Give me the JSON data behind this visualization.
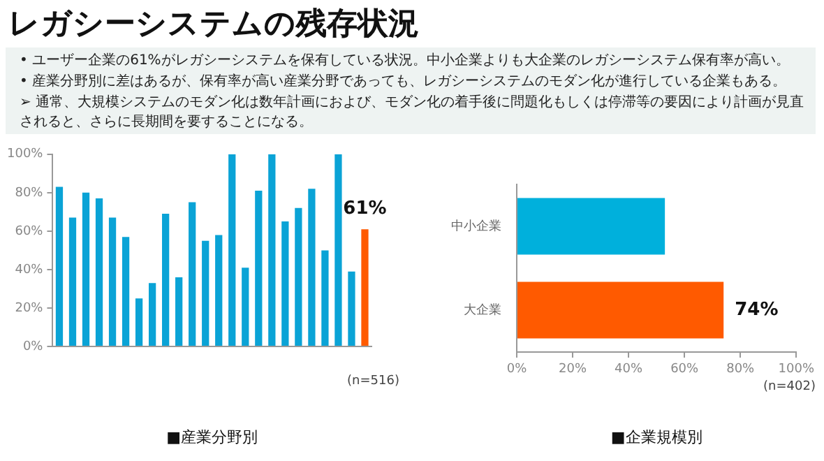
{
  "chart_data": [
    {
      "type": "other",
      "title": "レガシーシステムの残存状況",
      "annotations": [
        "• ユーザー企業の61%がレガシーシステムを保有している状況。中小企業よりも大企業のレガシーシステム保有率が高い。",
        "• 産業分野別に差はあるが、保有率が高い産業分野であっても、レガシーシステムのモダン化が進行している企業もある。",
        "➢ 通常、大規模システムのモダン化は数年計画におよび、モダン化の着手後に問題化もしくは停滞等の要因により計画が見直されると、さらに長期間を要することになる。"
      ]
    },
    {
      "type": "bar",
      "xlabel": "■産業分野別",
      "annotations": [
        "(n=516)"
      ],
      "categories": [
        null,
        null,
        null,
        null,
        null,
        null,
        null,
        null,
        null,
        null,
        null,
        null,
        null,
        null,
        null,
        null,
        null,
        null,
        null,
        null,
        null,
        null,
        null,
        null
      ],
      "values": [
        83,
        67,
        80,
        77,
        67,
        57,
        25,
        33,
        69,
        36,
        75,
        55,
        58,
        100,
        41,
        81,
        100,
        65,
        72,
        82,
        50,
        100,
        39,
        61
      ],
      "colors": [
        "#0aa3d6",
        "#0aa3d6",
        "#0aa3d6",
        "#0aa3d6",
        "#0aa3d6",
        "#0aa3d6",
        "#0aa3d6",
        "#0aa3d6",
        "#0aa3d6",
        "#0aa3d6",
        "#0aa3d6",
        "#0aa3d6",
        "#0aa3d6",
        "#0aa3d6",
        "#0aa3d6",
        "#0aa3d6",
        "#0aa3d6",
        "#0aa3d6",
        "#0aa3d6",
        "#0aa3d6",
        "#0aa3d6",
        "#0aa3d6",
        "#0aa3d6",
        "#ff5a00"
      ],
      "value_labels": [
        null,
        null,
        null,
        null,
        null,
        null,
        null,
        null,
        null,
        null,
        null,
        null,
        null,
        null,
        null,
        null,
        null,
        null,
        null,
        null,
        null,
        null,
        null,
        "61%"
      ],
      "ylim": [
        0,
        100
      ],
      "yticks": [
        {
          "value": 0,
          "label": "0%"
        },
        {
          "value": 20,
          "label": "20%"
        },
        {
          "value": 40,
          "label": "40%"
        },
        {
          "value": 60,
          "label": "60%"
        },
        {
          "value": 80,
          "label": "80%"
        },
        {
          "value": 100,
          "label": "100%"
        }
      ]
    },
    {
      "type": "bar",
      "orientation": "horizontal",
      "xlabel": "■企業規模別",
      "annotations": [
        "(n=402)"
      ],
      "categories": [
        "中小企業",
        "大企業"
      ],
      "values": [
        53,
        74
      ],
      "colors": [
        "#00b0dc",
        "#ff5a00"
      ],
      "value_labels": [
        null,
        "74%"
      ],
      "xlim": [
        0,
        100
      ],
      "xticks": [
        {
          "value": 0,
          "label": "0%"
        },
        {
          "value": 20,
          "label": "20%"
        },
        {
          "value": 40,
          "label": "40%"
        },
        {
          "value": 60,
          "label": "60%"
        },
        {
          "value": 80,
          "label": "80%"
        },
        {
          "value": 100,
          "label": "100%"
        }
      ]
    }
  ]
}
